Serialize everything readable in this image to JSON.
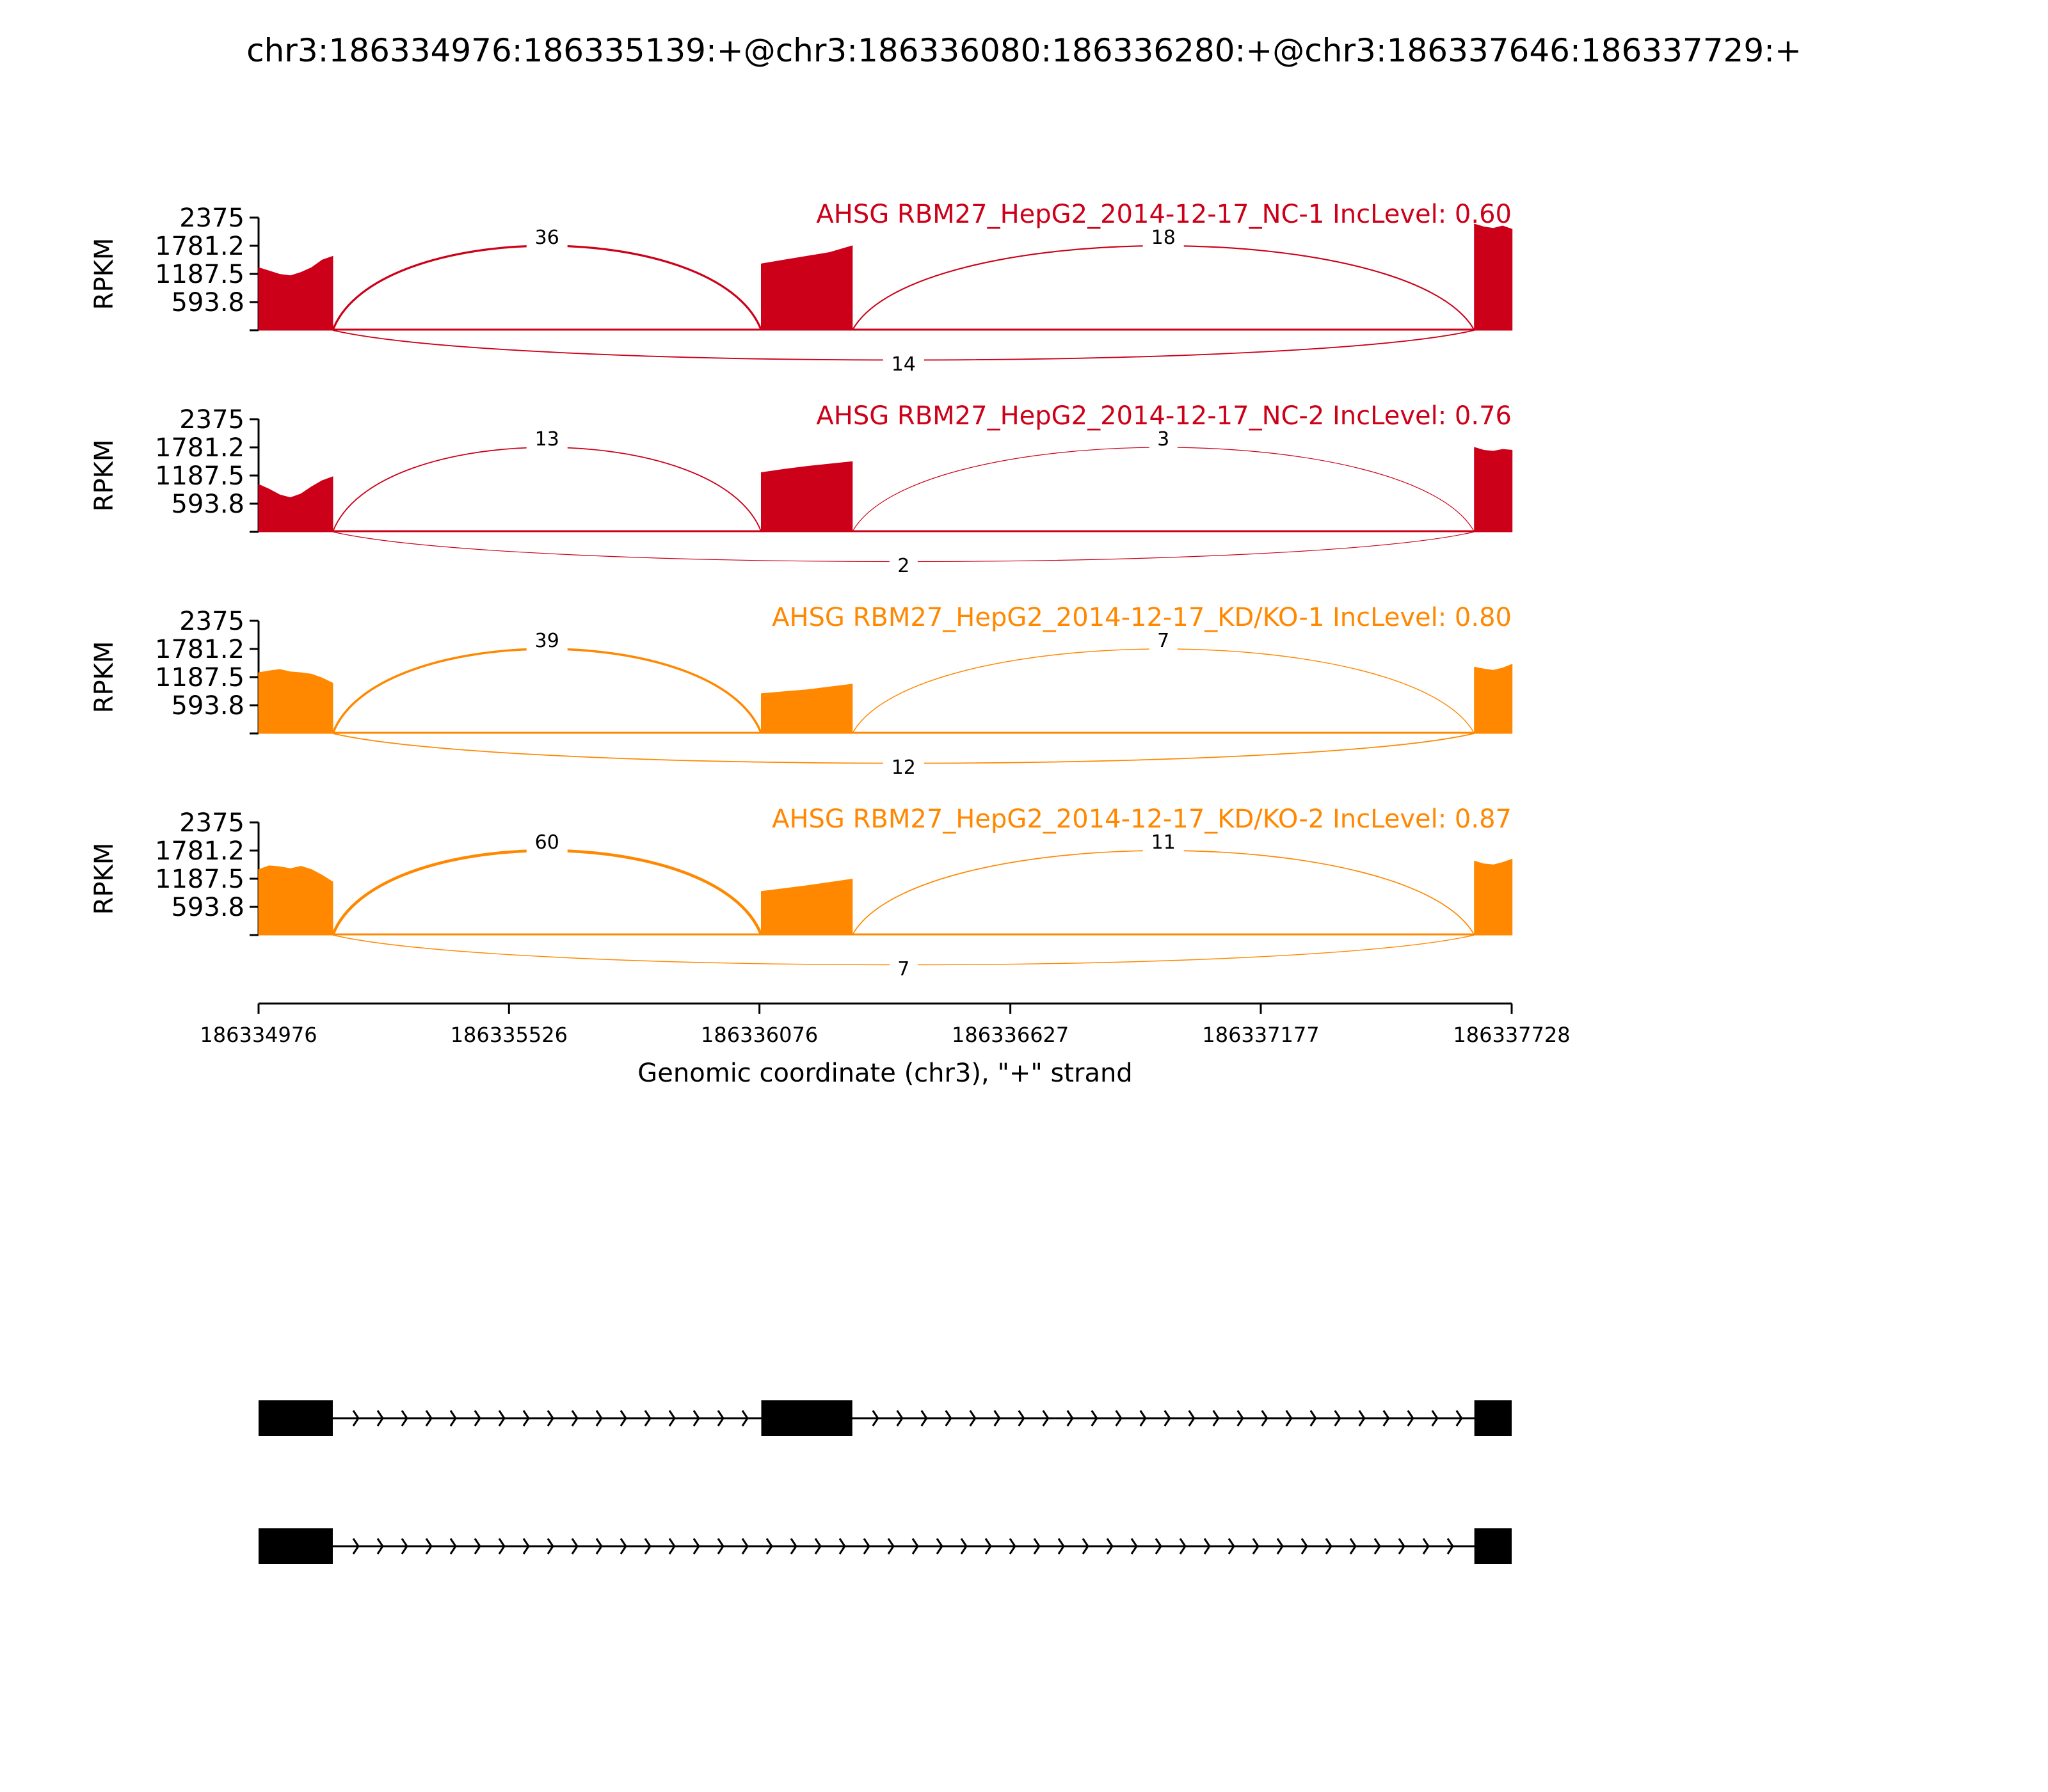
{
  "figure": {
    "title": "chr3:186334976:186335139:+@chr3:186336080:186336280:+@chr3:186337646:186337729:+"
  },
  "chart_data": {
    "type": "area",
    "subtype": "sashimi",
    "title": "chr3:186334976:186335139:+@chr3:186336080:186336280:+@chr3:186337646:186337729:+",
    "xlabel": "Genomic coordinate (chr3), \"+\" strand",
    "ylabel": "RPKM",
    "xlim": [
      186334976,
      186337728
    ],
    "x_ticks": [
      "186334976",
      "186335526",
      "186336076",
      "186336627",
      "186337177",
      "186337728"
    ],
    "x_tick_values": [
      186334976,
      186335526,
      186336076,
      186336627,
      186337177,
      186337728
    ],
    "ylim": [
      0,
      2375
    ],
    "y_ticks": [
      "2375",
      "1781.2",
      "1187.5",
      "593.8"
    ],
    "y_tick_values": [
      2375,
      1781.2,
      1187.5,
      593.8
    ],
    "exons": [
      {
        "start": 186334976,
        "end": 186335139
      },
      {
        "start": 186336080,
        "end": 186336280
      },
      {
        "start": 186337646,
        "end": 186337729
      }
    ],
    "series": [
      {
        "label": "AHSG RBM27_HepG2_2014-12-17_NC-1 IncLevel: 0.60",
        "color": "#cc0018",
        "exon_levels": [
          {
            "profile": [
              1320,
              1250,
              1180,
              1150,
              1220,
              1320,
              1480,
              1560
            ]
          },
          {
            "profile": [
              1400,
              1480,
              1560,
              1640,
              1780
            ]
          },
          {
            "profile": [
              2240,
              2180,
              2150,
              2200,
              2130
            ]
          }
        ],
        "junctions": [
          {
            "from": 186335139,
            "to": 186336080,
            "count": "36",
            "side": "above"
          },
          {
            "from": 186336280,
            "to": 186337646,
            "count": "18",
            "side": "above"
          },
          {
            "from": 186335139,
            "to": 186337646,
            "count": "14",
            "side": "below"
          }
        ]
      },
      {
        "label": "AHSG RBM27_HepG2_2014-12-17_NC-2 IncLevel: 0.76",
        "color": "#cc0018",
        "exon_levels": [
          {
            "profile": [
              1000,
              900,
              780,
              720,
              800,
              950,
              1080,
              1160
            ]
          },
          {
            "profile": [
              1250,
              1320,
              1380,
              1430,
              1480
            ]
          },
          {
            "profile": [
              1780,
              1720,
              1700,
              1740,
              1720
            ]
          }
        ],
        "junctions": [
          {
            "from": 186335139,
            "to": 186336080,
            "count": "13",
            "side": "above"
          },
          {
            "from": 186336280,
            "to": 186337646,
            "count": "3",
            "side": "above"
          },
          {
            "from": 186335139,
            "to": 186337646,
            "count": "2",
            "side": "below"
          }
        ]
      },
      {
        "label": "AHSG RBM27_HepG2_2014-12-17_KD/KO-1 IncLevel: 0.80",
        "color": "#ff8800",
        "exon_levels": [
          {
            "profile": [
              1280,
              1320,
              1350,
              1300,
              1280,
              1250,
              1170,
              1060
            ]
          },
          {
            "profile": [
              840,
              880,
              920,
              980,
              1040
            ]
          },
          {
            "profile": [
              1400,
              1360,
              1330,
              1380,
              1460
            ]
          }
        ],
        "junctions": [
          {
            "from": 186335139,
            "to": 186336080,
            "count": "39",
            "side": "above"
          },
          {
            "from": 186336280,
            "to": 186337646,
            "count": "7",
            "side": "above"
          },
          {
            "from": 186335139,
            "to": 186337646,
            "count": "12",
            "side": "below"
          }
        ]
      },
      {
        "label": "AHSG RBM27_HepG2_2014-12-17_KD/KO-2 IncLevel: 0.87",
        "color": "#ff8800",
        "exon_levels": [
          {
            "profile": [
              1380,
              1460,
              1440,
              1400,
              1450,
              1380,
              1260,
              1120
            ]
          },
          {
            "profile": [
              920,
              980,
              1040,
              1110,
              1180
            ]
          },
          {
            "profile": [
              1560,
              1500,
              1480,
              1530,
              1600
            ]
          }
        ],
        "junctions": [
          {
            "from": 186335139,
            "to": 186336080,
            "count": "60",
            "side": "above"
          },
          {
            "from": 186336280,
            "to": 186337646,
            "count": "11",
            "side": "above"
          },
          {
            "from": 186335139,
            "to": 186337646,
            "count": "7",
            "side": "below"
          }
        ]
      }
    ],
    "isoforms": [
      {
        "exons": [
          [
            186334976,
            186335139
          ],
          [
            186336080,
            186336280
          ],
          [
            186337646,
            186337729
          ]
        ]
      },
      {
        "exons": [
          [
            186334976,
            186335139
          ],
          [
            186337646,
            186337729
          ]
        ]
      }
    ],
    "grid": false,
    "legend": "none"
  }
}
